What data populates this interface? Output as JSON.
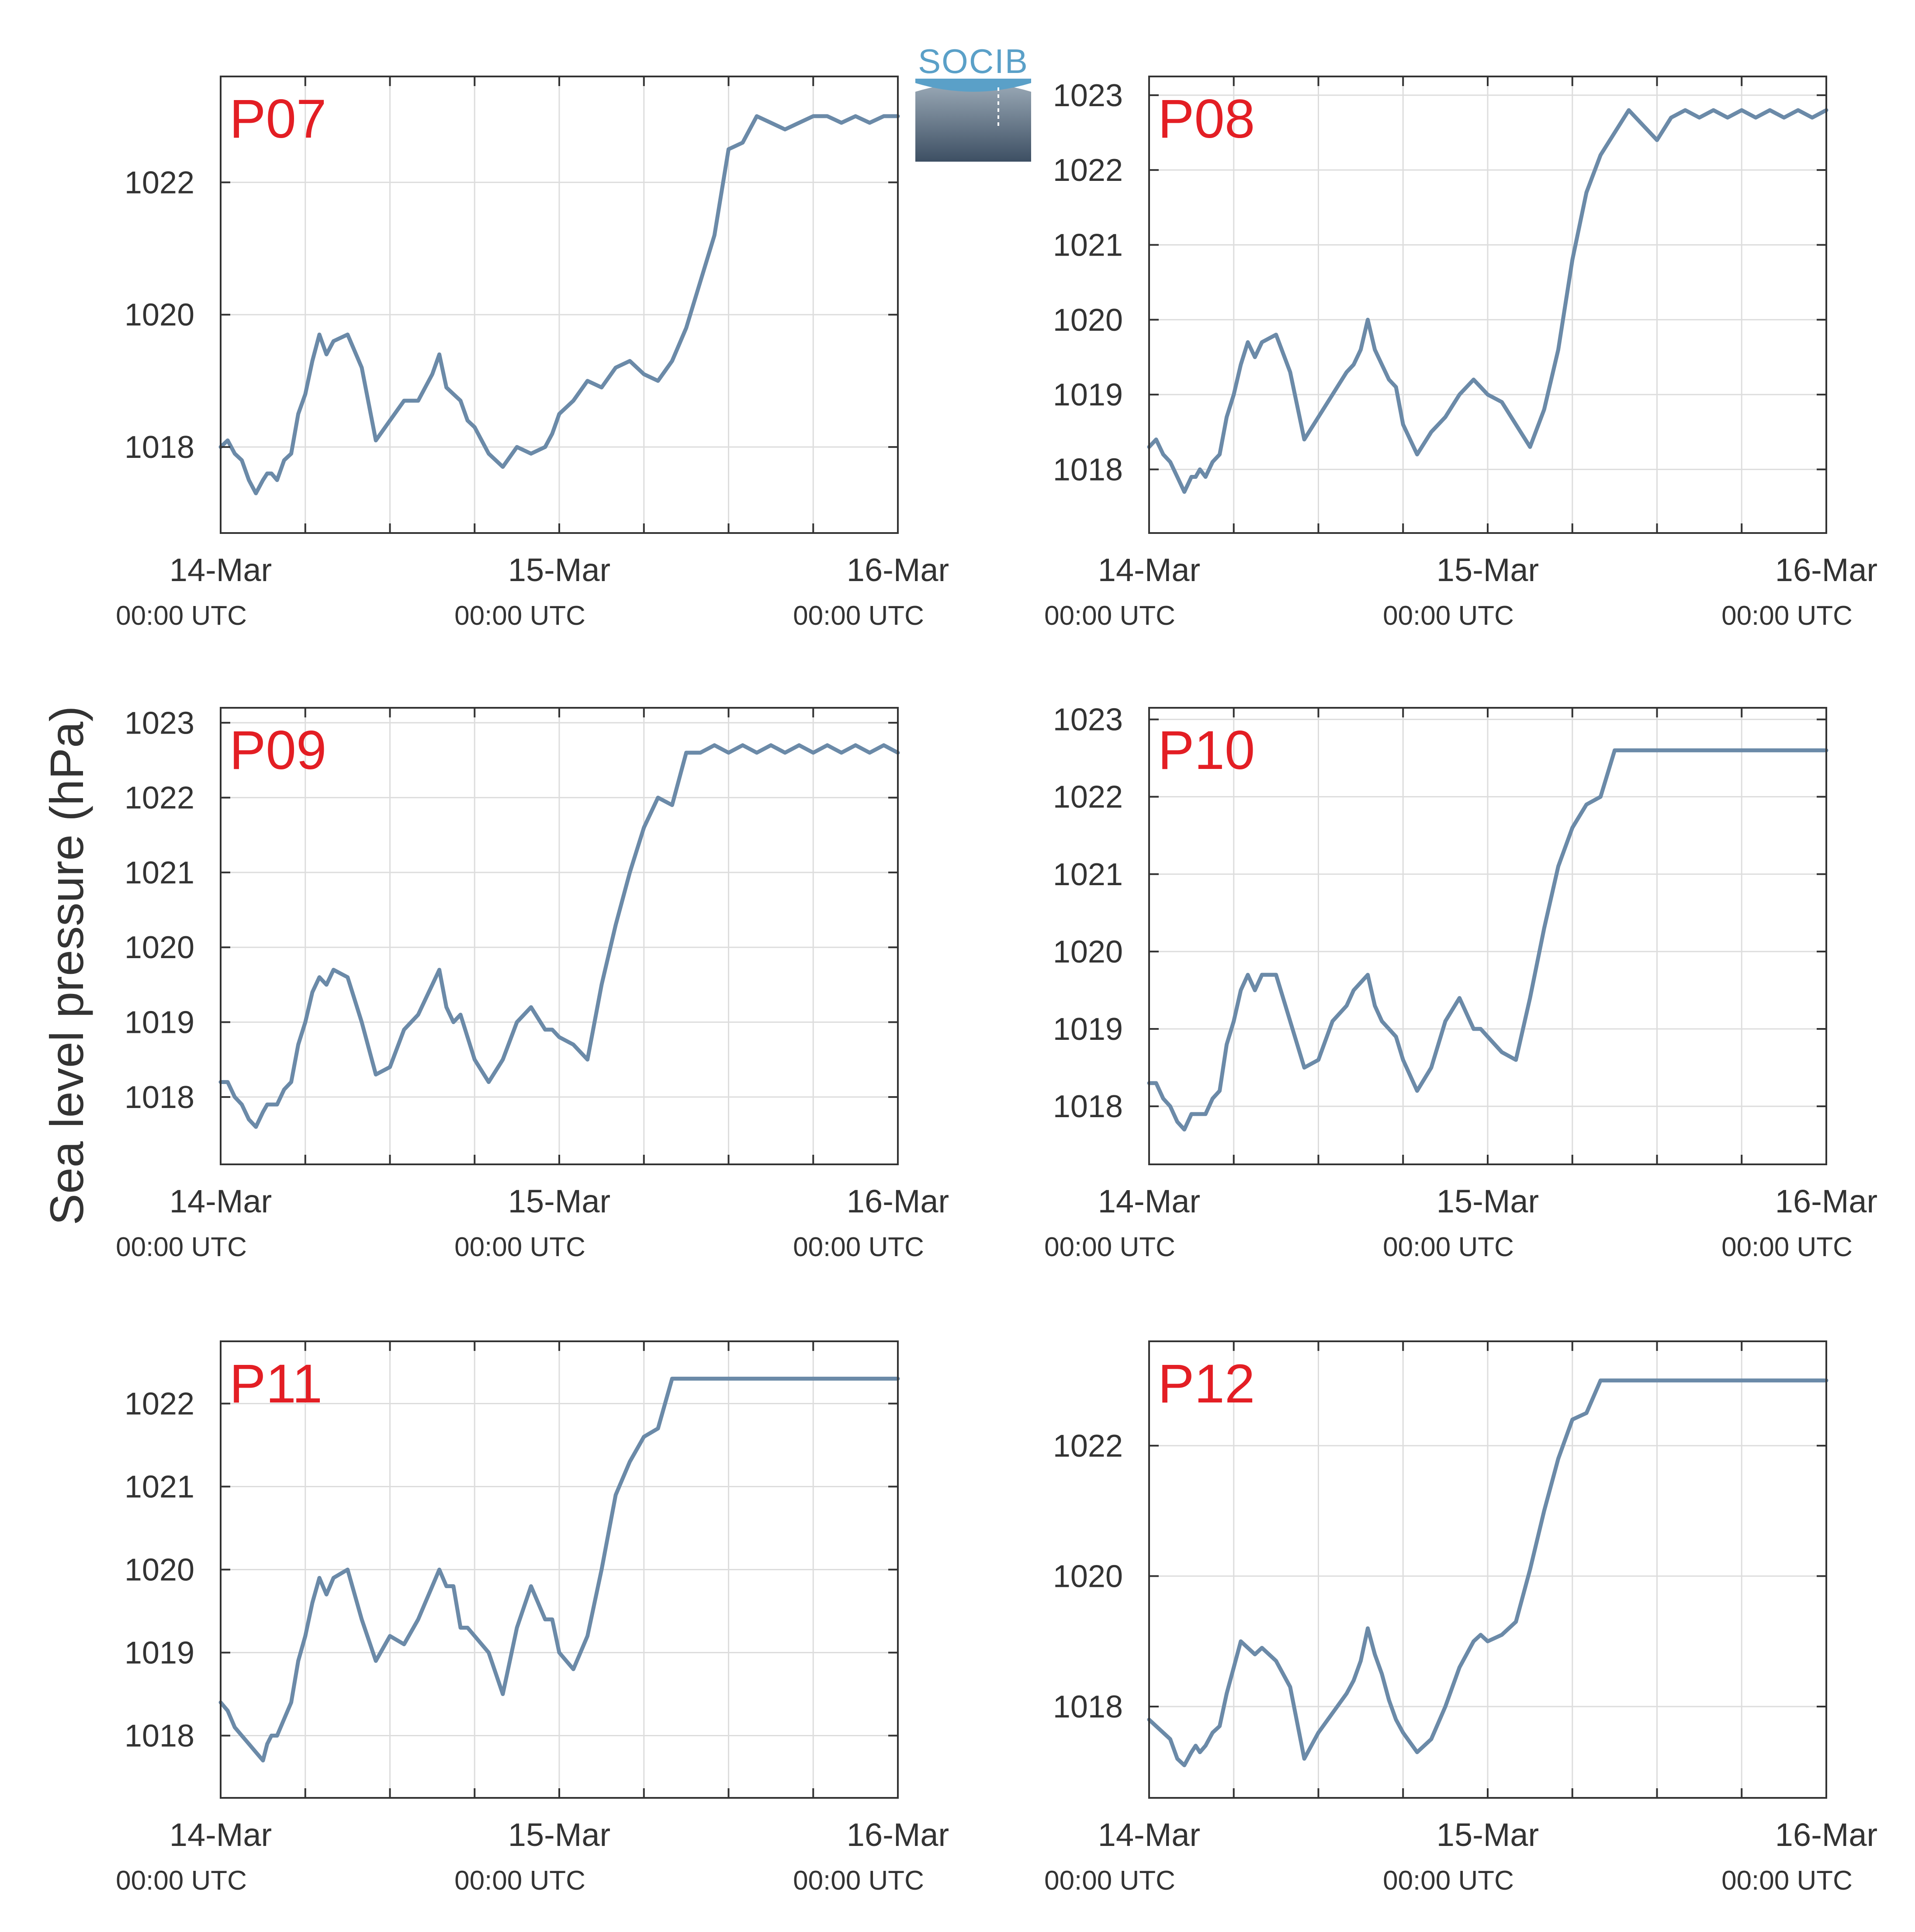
{
  "figure": {
    "ylabel": "Sea level pressure (hPa)",
    "logo_text": "SOCIB",
    "colors": {
      "line": "#6b8aa8",
      "panel_label": "#e31e24",
      "axes": "#333333",
      "grid": "#dddddd",
      "text": "#333333"
    }
  },
  "chart_data": [
    {
      "type": "line",
      "title": "P07",
      "x_tick_labels": [
        [
          "14-Mar",
          "00:00 UTC"
        ],
        [
          "15-Mar",
          "00:00 UTC"
        ],
        [
          "16-Mar",
          "00:00 UTC"
        ]
      ],
      "xlim_hours": [
        0,
        48
      ],
      "x_grid_hours": [
        0,
        6,
        12,
        18,
        24,
        30,
        36,
        42,
        48
      ],
      "ylim": [
        1016.7,
        1023.6
      ],
      "yticks": [
        1018,
        1020,
        1022
      ],
      "grid": true,
      "series": [
        {
          "x_hours": [
            0,
            0.5,
            1,
            1.5,
            2,
            2.5,
            3,
            3.3,
            3.6,
            4,
            4.5,
            5,
            5.5,
            6,
            6.5,
            7,
            7.5,
            8,
            9,
            10,
            11,
            12,
            13,
            14,
            14.5,
            15,
            15.5,
            16,
            16.5,
            17,
            17.5,
            18,
            19,
            20,
            21,
            22,
            23,
            23.5,
            24,
            25,
            26,
            27,
            28,
            29,
            30,
            31,
            32,
            33,
            34,
            35,
            36,
            37,
            38,
            39,
            40,
            41,
            42,
            43,
            44,
            45,
            46,
            47,
            48
          ],
          "values": [
            1018.0,
            1018.1,
            1017.9,
            1017.8,
            1017.5,
            1017.3,
            1017.5,
            1017.6,
            1017.6,
            1017.5,
            1017.8,
            1017.9,
            1018.5,
            1018.8,
            1019.3,
            1019.7,
            1019.4,
            1019.6,
            1019.7,
            1019.2,
            1018.1,
            1018.4,
            1018.7,
            1018.7,
            1018.9,
            1019.1,
            1019.4,
            1018.9,
            1018.8,
            1018.7,
            1018.4,
            1018.3,
            1017.9,
            1017.7,
            1018.0,
            1017.9,
            1018.0,
            1018.2,
            1018.5,
            1018.7,
            1019.0,
            1018.9,
            1019.2,
            1019.3,
            1019.1,
            1019.0,
            1019.3,
            1019.8,
            1020.5,
            1021.2,
            1022.5,
            1022.6,
            1023.0,
            1022.9,
            1022.8,
            1022.9,
            1023.0,
            1023.0,
            1022.9,
            1023.0,
            1022.9,
            1023.0,
            1023.0
          ]
        }
      ]
    },
    {
      "type": "line",
      "title": "P08",
      "x_tick_labels": [
        [
          "14-Mar",
          "00:00 UTC"
        ],
        [
          "15-Mar",
          "00:00 UTC"
        ],
        [
          "16-Mar",
          "00:00 UTC"
        ]
      ],
      "xlim_hours": [
        0,
        48
      ],
      "x_grid_hours": [
        0,
        6,
        12,
        18,
        24,
        30,
        36,
        42,
        48
      ],
      "ylim": [
        1017.15,
        1023.25
      ],
      "yticks": [
        1018,
        1019,
        1020,
        1021,
        1022,
        1023
      ],
      "grid": true,
      "series": [
        {
          "x_hours": [
            0,
            0.5,
            1,
            1.5,
            2,
            2.5,
            3,
            3.3,
            3.6,
            4,
            4.5,
            5,
            5.5,
            6,
            6.5,
            7,
            7.5,
            8,
            9,
            10,
            11,
            12,
            13,
            14,
            14.5,
            15,
            15.5,
            16,
            16.5,
            17,
            17.5,
            18,
            19,
            20,
            21,
            22,
            23,
            23.5,
            24,
            25,
            26,
            27,
            28,
            29,
            30,
            31,
            32,
            33,
            34,
            35,
            36,
            37,
            38,
            39,
            40,
            41,
            42,
            43,
            44,
            45,
            46,
            47,
            48
          ],
          "values": [
            1018.3,
            1018.4,
            1018.2,
            1018.1,
            1017.9,
            1017.7,
            1017.9,
            1017.9,
            1018.0,
            1017.9,
            1018.1,
            1018.2,
            1018.7,
            1019.0,
            1019.4,
            1019.7,
            1019.5,
            1019.7,
            1019.8,
            1019.3,
            1018.4,
            1018.7,
            1019.0,
            1019.3,
            1019.4,
            1019.6,
            1020.0,
            1019.6,
            1019.4,
            1019.2,
            1019.1,
            1018.6,
            1018.2,
            1018.5,
            1018.7,
            1019.0,
            1019.2,
            1019.1,
            1019.0,
            1018.9,
            1018.6,
            1018.3,
            1018.8,
            1019.6,
            1020.8,
            1021.7,
            1022.2,
            1022.5,
            1022.8,
            1022.6,
            1022.4,
            1022.7,
            1022.8,
            1022.7,
            1022.8,
            1022.7,
            1022.8,
            1022.7,
            1022.8,
            1022.7,
            1022.8,
            1022.7,
            1022.8
          ]
        }
      ]
    },
    {
      "type": "line",
      "title": "P09",
      "x_tick_labels": [
        [
          "14-Mar",
          "00:00 UTC"
        ],
        [
          "15-Mar",
          "00:00 UTC"
        ],
        [
          "16-Mar",
          "00:00 UTC"
        ]
      ],
      "xlim_hours": [
        0,
        48
      ],
      "x_grid_hours": [
        0,
        6,
        12,
        18,
        24,
        30,
        36,
        42,
        48
      ],
      "ylim": [
        1017.1,
        1023.2
      ],
      "yticks": [
        1018,
        1019,
        1020,
        1021,
        1022,
        1023
      ],
      "grid": true,
      "series": [
        {
          "x_hours": [
            0,
            0.5,
            1,
            1.5,
            2,
            2.5,
            3,
            3.3,
            3.6,
            4,
            4.5,
            5,
            5.5,
            6,
            6.5,
            7,
            7.5,
            8,
            9,
            10,
            11,
            12,
            13,
            14,
            14.5,
            15,
            15.5,
            16,
            16.5,
            17,
            17.5,
            18,
            19,
            20,
            21,
            22,
            23,
            23.5,
            24,
            25,
            26,
            27,
            28,
            29,
            30,
            31,
            32,
            33,
            34,
            35,
            36,
            37,
            38,
            39,
            40,
            41,
            42,
            43,
            44,
            45,
            46,
            47,
            48
          ],
          "values": [
            1018.2,
            1018.2,
            1018.0,
            1017.9,
            1017.7,
            1017.6,
            1017.8,
            1017.9,
            1017.9,
            1017.9,
            1018.1,
            1018.2,
            1018.7,
            1019.0,
            1019.4,
            1019.6,
            1019.5,
            1019.7,
            1019.6,
            1019.0,
            1018.3,
            1018.4,
            1018.9,
            1019.1,
            1019.3,
            1019.5,
            1019.7,
            1019.2,
            1019.0,
            1019.1,
            1018.8,
            1018.5,
            1018.2,
            1018.5,
            1019.0,
            1019.2,
            1018.9,
            1018.9,
            1018.8,
            1018.7,
            1018.5,
            1019.5,
            1020.3,
            1021.0,
            1021.6,
            1022.0,
            1021.9,
            1022.6,
            1022.6,
            1022.7,
            1022.6,
            1022.7,
            1022.6,
            1022.7,
            1022.6,
            1022.7,
            1022.6,
            1022.7,
            1022.6,
            1022.7,
            1022.6,
            1022.7,
            1022.6
          ]
        }
      ]
    },
    {
      "type": "line",
      "title": "P10",
      "x_tick_labels": [
        [
          "14-Mar",
          "00:00 UTC"
        ],
        [
          "15-Mar",
          "00:00 UTC"
        ],
        [
          "16-Mar",
          "00:00 UTC"
        ]
      ],
      "xlim_hours": [
        0,
        48
      ],
      "x_grid_hours": [
        0,
        6,
        12,
        18,
        24,
        30,
        36,
        42,
        48
      ],
      "ylim": [
        1017.25,
        1023.15
      ],
      "yticks": [
        1018,
        1019,
        1020,
        1021,
        1022,
        1023
      ],
      "grid": true,
      "series": [
        {
          "x_hours": [
            0,
            0.5,
            1,
            1.5,
            2,
            2.5,
            3,
            3.3,
            3.6,
            4,
            4.5,
            5,
            5.5,
            6,
            6.5,
            7,
            7.5,
            8,
            9,
            10,
            11,
            12,
            13,
            14,
            14.5,
            15,
            15.5,
            16,
            16.5,
            17,
            17.5,
            18,
            19,
            20,
            21,
            22,
            23,
            23.5,
            24,
            25,
            26,
            27,
            28,
            29,
            30,
            31,
            32,
            33,
            34,
            35,
            36,
            37,
            38,
            39,
            40,
            41,
            42,
            43,
            44,
            45,
            46,
            47,
            48
          ],
          "values": [
            1018.3,
            1018.3,
            1018.1,
            1018.0,
            1017.8,
            1017.7,
            1017.9,
            1017.9,
            1017.9,
            1017.9,
            1018.1,
            1018.2,
            1018.8,
            1019.1,
            1019.5,
            1019.7,
            1019.5,
            1019.7,
            1019.7,
            1019.1,
            1018.5,
            1018.6,
            1019.1,
            1019.3,
            1019.5,
            1019.6,
            1019.7,
            1019.3,
            1019.1,
            1019.0,
            1018.9,
            1018.6,
            1018.2,
            1018.5,
            1019.1,
            1019.4,
            1019.0,
            1019.0,
            1018.9,
            1018.7,
            1018.6,
            1019.4,
            1020.3,
            1021.1,
            1021.6,
            1021.9,
            1022.0,
            1022.6,
            1022.6,
            1022.6,
            1022.6,
            1022.6,
            1022.6,
            1022.6,
            1022.6,
            1022.6,
            1022.6,
            1022.6,
            1022.6,
            1022.6,
            1022.6,
            1022.6,
            1022.6
          ]
        }
      ]
    },
    {
      "type": "line",
      "title": "P11",
      "x_tick_labels": [
        [
          "14-Mar",
          "00:00 UTC"
        ],
        [
          "15-Mar",
          "00:00 UTC"
        ],
        [
          "16-Mar",
          "00:00 UTC"
        ]
      ],
      "xlim_hours": [
        0,
        48
      ],
      "x_grid_hours": [
        0,
        6,
        12,
        18,
        24,
        30,
        36,
        42,
        48
      ],
      "ylim": [
        1017.25,
        1022.75
      ],
      "yticks": [
        1018,
        1019,
        1020,
        1021,
        1022
      ],
      "grid": true,
      "series": [
        {
          "x_hours": [
            0,
            0.5,
            1,
            1.5,
            2,
            2.5,
            3,
            3.3,
            3.6,
            4,
            4.5,
            5,
            5.5,
            6,
            6.5,
            7,
            7.5,
            8,
            9,
            10,
            11,
            12,
            13,
            14,
            14.5,
            15,
            15.5,
            16,
            16.5,
            17,
            17.5,
            18,
            19,
            20,
            21,
            22,
            23,
            23.5,
            24,
            25,
            26,
            27,
            28,
            29,
            30,
            31,
            32,
            33,
            34,
            35,
            36,
            37,
            38,
            39,
            40,
            41,
            42,
            43,
            44,
            45,
            46,
            47,
            48
          ],
          "values": [
            1018.4,
            1018.3,
            1018.1,
            1018.0,
            1017.9,
            1017.8,
            1017.7,
            1017.9,
            1018.0,
            1018.0,
            1018.2,
            1018.4,
            1018.9,
            1019.2,
            1019.6,
            1019.9,
            1019.7,
            1019.9,
            1020.0,
            1019.4,
            1018.9,
            1019.2,
            1019.1,
            1019.4,
            1019.6,
            1019.8,
            1020.0,
            1019.8,
            1019.8,
            1019.3,
            1019.3,
            1019.2,
            1019.0,
            1018.5,
            1019.3,
            1019.8,
            1019.4,
            1019.4,
            1019.0,
            1018.8,
            1019.2,
            1020.0,
            1020.9,
            1021.3,
            1021.6,
            1021.7,
            1022.3,
            1022.3,
            1022.3,
            1022.3,
            1022.3,
            1022.3,
            1022.3,
            1022.3,
            1022.3,
            1022.3,
            1022.3,
            1022.3,
            1022.3,
            1022.3,
            1022.3,
            1022.3,
            1022.3
          ]
        }
      ]
    },
    {
      "type": "line",
      "title": "P12",
      "x_tick_labels": [
        [
          "14-Mar",
          "00:00 UTC"
        ],
        [
          "15-Mar",
          "00:00 UTC"
        ],
        [
          "16-Mar",
          "00:00 UTC"
        ]
      ],
      "xlim_hours": [
        0,
        48
      ],
      "x_grid_hours": [
        0,
        6,
        12,
        18,
        24,
        30,
        36,
        42,
        48
      ],
      "ylim": [
        1016.6,
        1023.6
      ],
      "yticks": [
        1018,
        1020,
        1022
      ],
      "grid": true,
      "series": [
        {
          "x_hours": [
            0,
            0.5,
            1,
            1.5,
            2,
            2.5,
            3,
            3.3,
            3.6,
            4,
            4.5,
            5,
            5.5,
            6,
            6.5,
            7,
            7.5,
            8,
            9,
            10,
            11,
            12,
            13,
            14,
            14.5,
            15,
            15.5,
            16,
            16.5,
            17,
            17.5,
            18,
            19,
            20,
            21,
            22,
            23,
            23.5,
            24,
            25,
            26,
            27,
            28,
            29,
            30,
            31,
            32,
            33,
            34,
            35,
            36,
            37,
            38,
            39,
            40,
            41,
            42,
            43,
            44,
            45,
            46,
            47,
            48
          ],
          "values": [
            1017.8,
            1017.7,
            1017.6,
            1017.5,
            1017.2,
            1017.1,
            1017.3,
            1017.4,
            1017.3,
            1017.4,
            1017.6,
            1017.7,
            1018.2,
            1018.6,
            1019.0,
            1018.9,
            1018.8,
            1018.9,
            1018.7,
            1018.3,
            1017.2,
            1017.6,
            1017.9,
            1018.2,
            1018.4,
            1018.7,
            1019.2,
            1018.8,
            1018.5,
            1018.1,
            1017.8,
            1017.6,
            1017.3,
            1017.5,
            1018.0,
            1018.6,
            1019.0,
            1019.1,
            1019.0,
            1019.1,
            1019.3,
            1020.1,
            1021.0,
            1021.8,
            1022.4,
            1022.5,
            1023.0,
            1023.0,
            1023.0,
            1023.0,
            1023.0,
            1023.0,
            1023.0,
            1023.0,
            1023.0,
            1023.0,
            1023.0,
            1023.0,
            1023.0,
            1023.0,
            1023.0,
            1023.0,
            1023.0
          ]
        }
      ]
    }
  ]
}
